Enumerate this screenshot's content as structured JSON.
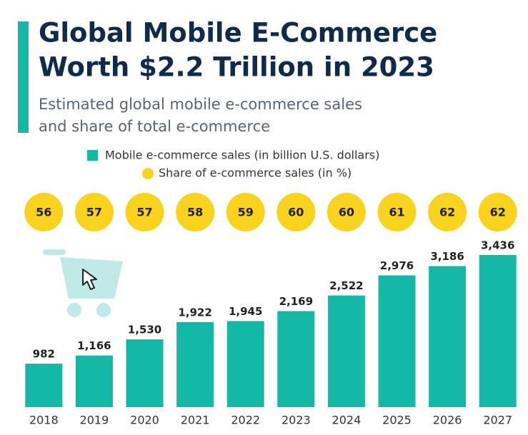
{
  "chart_data": {
    "type": "bar",
    "title": [
      "Global Mobile E-Commerce",
      "Worth $2.2 Trillion in 2023"
    ],
    "subtitle": [
      "Estimated global mobile e-commerce sales",
      "and share of total e-commerce"
    ],
    "categories": [
      "2018",
      "2019",
      "2020",
      "2021",
      "2022",
      "2023",
      "2024",
      "2025",
      "2026",
      "2027"
    ],
    "series": [
      {
        "name": "Mobile e-commerce sales (in billion U.S. dollars)",
        "color": "#15b8a6",
        "values": [
          982,
          1166,
          1530,
          1922,
          1945,
          2169,
          2522,
          2976,
          3186,
          3436
        ],
        "value_labels": [
          "982",
          "1,166",
          "1,530",
          "1,922",
          "1,945",
          "2,169",
          "2,522",
          "2,976",
          "3,186",
          "3,436"
        ]
      },
      {
        "name": "Share of e-commerce sales (in %)",
        "color": "#f8d21c",
        "values": [
          56,
          57,
          57,
          58,
          59,
          60,
          60,
          61,
          62,
          62
        ]
      }
    ]
  }
}
